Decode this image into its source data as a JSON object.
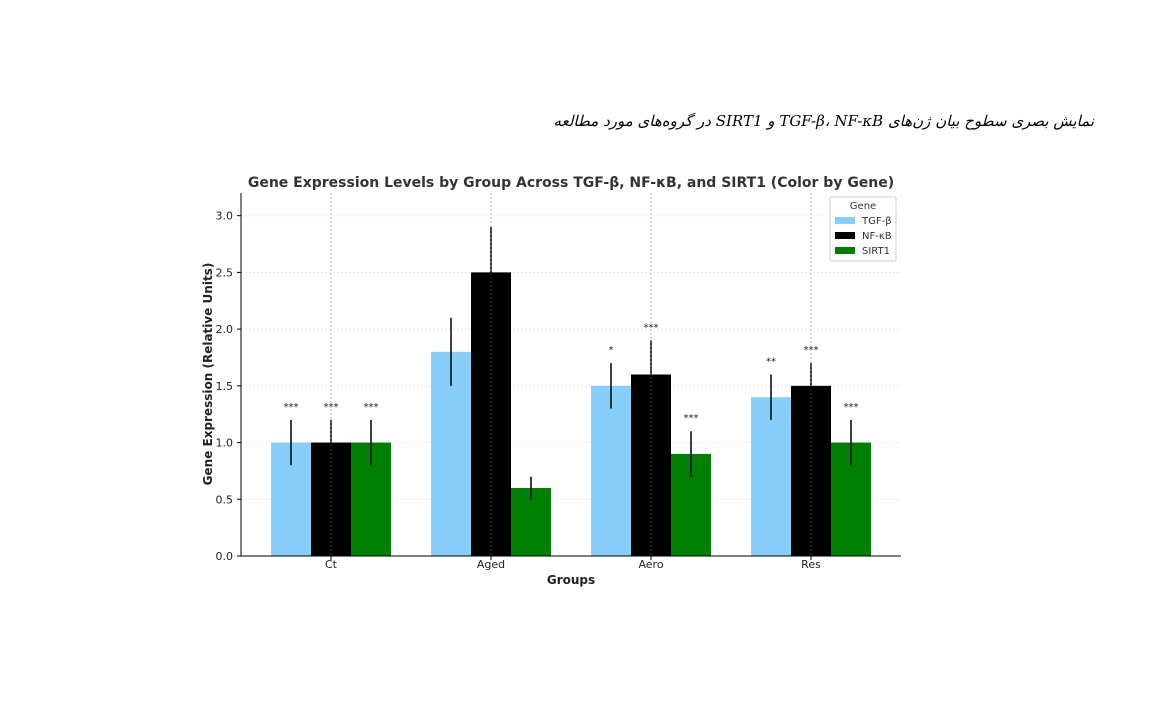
{
  "caption": "نمایش بصری سطوح بیان ژن‌های TGF-β، NF-κB و SIRT1 در گروه‌های مورد مطالعه",
  "chart_data": {
    "type": "bar",
    "title": "Gene Expression Levels by Group Across TGF-β, NF-κB, and SIRT1 (Color by Gene)",
    "xlabel": "Groups",
    "ylabel": "Gene Expression (Relative Units)",
    "ylim": [
      0,
      3.2
    ],
    "yticks": [
      "0.0",
      "0.5",
      "1.0",
      "1.5",
      "2.0",
      "2.5",
      "3.0"
    ],
    "categories": [
      "Ct",
      "Aged",
      "Aero",
      "Res"
    ],
    "grid": true,
    "legend": {
      "title": "Gene",
      "position": "top-right"
    },
    "series": [
      {
        "name": "TGF-β",
        "color": "#87CEFA",
        "values": [
          1.0,
          1.8,
          1.5,
          1.4
        ],
        "errors": [
          0.2,
          0.3,
          0.2,
          0.2
        ],
        "significance": [
          "***",
          "",
          "*",
          "**"
        ]
      },
      {
        "name": "NF-κB",
        "color": "#000000",
        "values": [
          1.0,
          2.5,
          1.6,
          1.5
        ],
        "errors": [
          0.2,
          0.4,
          0.3,
          0.2
        ],
        "significance": [
          "***",
          "",
          "***",
          "***"
        ]
      },
      {
        "name": "SIRT1",
        "color": "#008000",
        "values": [
          1.0,
          0.6,
          0.9,
          1.0
        ],
        "errors": [
          0.2,
          0.1,
          0.2,
          0.2
        ],
        "significance": [
          "***",
          "",
          "***",
          "***"
        ]
      }
    ]
  }
}
